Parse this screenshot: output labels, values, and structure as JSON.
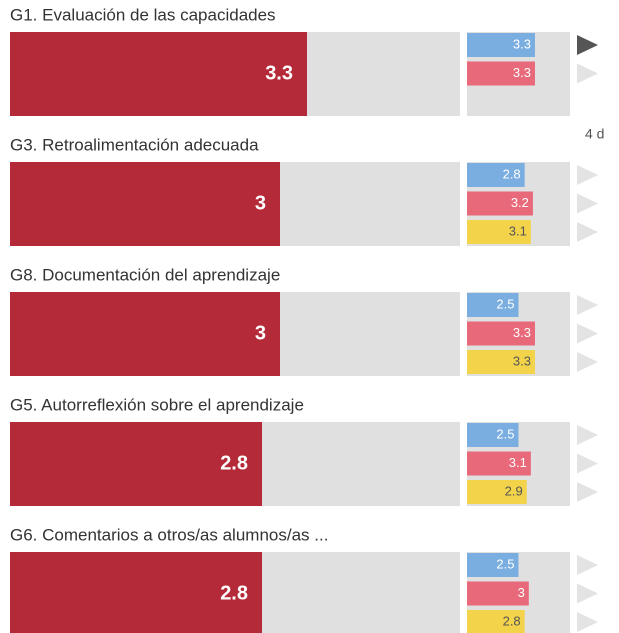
{
  "xlim": [
    0,
    5
  ],
  "main_color": "#b52a38",
  "comparison_colors": [
    "#7aaee0",
    "#e8697a",
    "#f3d34a"
  ],
  "note": "4 d",
  "groups": [
    {
      "title": "G1. Evaluación de las capacidades",
      "value": 3.3,
      "comparisons": [
        3.3,
        3.3
      ]
    },
    {
      "title": "G3. Retroalimentación adecuada",
      "value": 3,
      "comparisons": [
        2.8,
        3.2,
        3.1
      ]
    },
    {
      "title": "G8. Documentación del aprendizaje",
      "value": 3,
      "comparisons": [
        2.5,
        3.3,
        3.3
      ]
    },
    {
      "title": "G5. Autorreflexión sobre el aprendizaje",
      "value": 2.8,
      "comparisons": [
        2.5,
        3.1,
        2.9
      ]
    },
    {
      "title": "G6. Comentarios a otros/as alumnos/as ...",
      "value": 2.8,
      "comparisons": [
        2.5,
        3,
        2.8
      ]
    }
  ]
}
